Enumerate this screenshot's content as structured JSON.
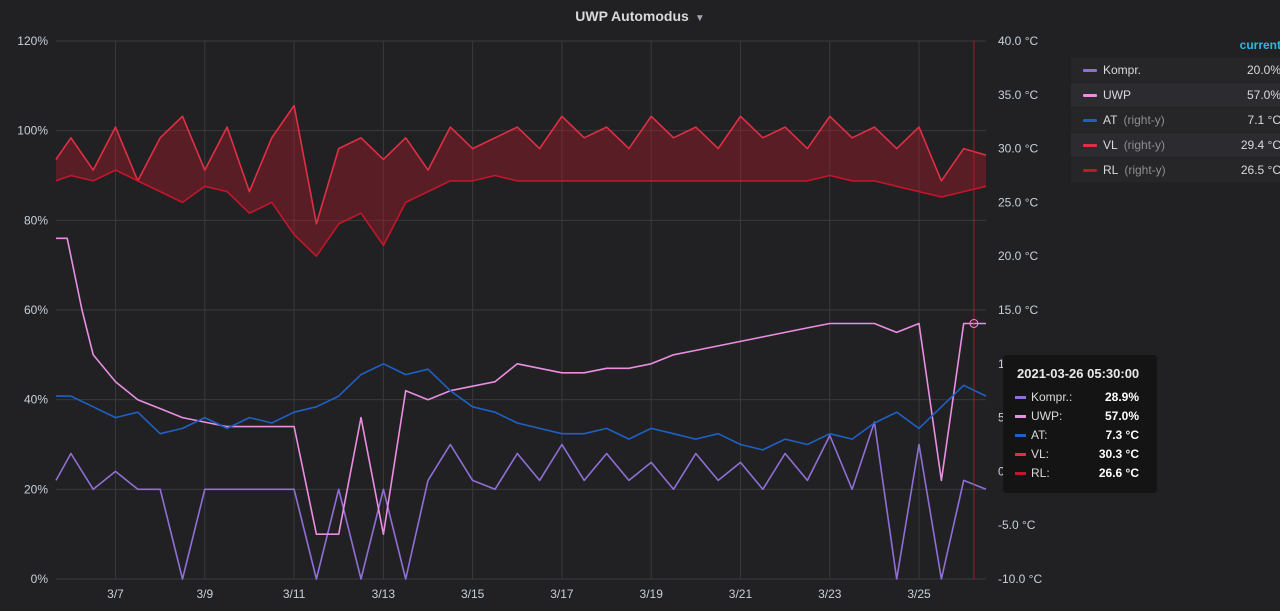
{
  "panel": {
    "title": "UWP Automodus"
  },
  "legend": {
    "header": "current",
    "items": [
      {
        "name": "Kompr.",
        "axis": "",
        "value": "20.0%",
        "color": "#8f6fd6"
      },
      {
        "name": "UWP",
        "axis": "",
        "value": "57.0%",
        "color": "#e98ee0"
      },
      {
        "name": "AT",
        "axis": "(right-y)",
        "value": "7.1 °C",
        "color": "#1f60c4"
      },
      {
        "name": "VL",
        "axis": "(right-y)",
        "value": "29.4 °C",
        "color": "#e02f44"
      },
      {
        "name": "RL",
        "axis": "(right-y)",
        "value": "26.5 °C",
        "color": "#c4162a"
      }
    ]
  },
  "tooltip": {
    "time": "2021-03-26 05:30:00",
    "rows": [
      {
        "name": "Kompr.:",
        "value": "28.9%",
        "color": "#8f6fd6"
      },
      {
        "name": "UWP:",
        "value": "57.0%",
        "color": "#e98ee0"
      },
      {
        "name": "AT:",
        "value": "7.3 °C",
        "color": "#1f60c4"
      },
      {
        "name": "VL:",
        "value": "30.3 °C",
        "color": "#e02f44"
      },
      {
        "name": "RL:",
        "value": "26.6 °C",
        "color": "#c4162a"
      }
    ]
  },
  "chart_data": {
    "type": "line",
    "title": "UWP Automodus",
    "xlabel": "",
    "ylabel": "",
    "y2label": "",
    "x_ticks": [
      "3/7",
      "3/9",
      "3/11",
      "3/13",
      "3/15",
      "3/17",
      "3/19",
      "3/21",
      "3/23",
      "3/25"
    ],
    "x_range": [
      "2021-03-05T16:00",
      "2021-03-26T12:00"
    ],
    "ylim": [
      0,
      120
    ],
    "y_ticks": [
      "0%",
      "20%",
      "40%",
      "60%",
      "80%",
      "100%",
      "120%"
    ],
    "y2lim": [
      -10,
      40
    ],
    "y2_ticks": [
      "-10.0 °C",
      "-5.0 °C",
      "0",
      "5",
      "10",
      "15.0 °C",
      "20.0 °C",
      "25.0 °C",
      "30.0 °C",
      "35.0 °C",
      "40.0 °C"
    ],
    "grid": true,
    "legend_position": "right",
    "series": [
      {
        "name": "Kompr.",
        "axis": "left",
        "color": "#8f6fd6",
        "x": [
          "2021-03-05T16:00",
          "2021-03-06T00:00",
          "2021-03-06T12:00",
          "2021-03-07T00:00",
          "2021-03-07T12:00",
          "2021-03-08T00:00",
          "2021-03-08T12:00",
          "2021-03-09T00:00",
          "2021-03-09T12:00",
          "2021-03-10T00:00",
          "2021-03-10T12:00",
          "2021-03-11T00:00",
          "2021-03-11T12:00",
          "2021-03-12T00:00",
          "2021-03-12T12:00",
          "2021-03-13T00:00",
          "2021-03-13T12:00",
          "2021-03-14T00:00",
          "2021-03-14T12:00",
          "2021-03-15T00:00",
          "2021-03-15T12:00",
          "2021-03-16T00:00",
          "2021-03-16T12:00",
          "2021-03-17T00:00",
          "2021-03-17T12:00",
          "2021-03-18T00:00",
          "2021-03-18T12:00",
          "2021-03-19T00:00",
          "2021-03-19T12:00",
          "2021-03-20T00:00",
          "2021-03-20T12:00",
          "2021-03-21T00:00",
          "2021-03-21T12:00",
          "2021-03-22T00:00",
          "2021-03-22T12:00",
          "2021-03-23T00:00",
          "2021-03-23T12:00",
          "2021-03-24T00:00",
          "2021-03-24T12:00",
          "2021-03-25T00:00",
          "2021-03-25T12:00",
          "2021-03-26T00:00",
          "2021-03-26T12:00"
        ],
        "y": [
          22,
          28,
          20,
          24,
          20,
          20,
          0,
          20,
          20,
          20,
          20,
          20,
          0,
          20,
          0,
          20,
          0,
          22,
          30,
          22,
          20,
          28,
          22,
          30,
          22,
          28,
          22,
          26,
          20,
          28,
          22,
          26,
          20,
          28,
          22,
          32,
          20,
          35,
          0,
          30,
          0,
          22,
          20
        ]
      },
      {
        "name": "UWP",
        "axis": "left",
        "color": "#e98ee0",
        "x": [
          "2021-03-05T16:00",
          "2021-03-05T22:00",
          "2021-03-06T06:00",
          "2021-03-06T12:00",
          "2021-03-07T00:00",
          "2021-03-07T12:00",
          "2021-03-08T00:00",
          "2021-03-08T12:00",
          "2021-03-09T00:00",
          "2021-03-09T12:00",
          "2021-03-10T00:00",
          "2021-03-10T12:00",
          "2021-03-11T00:00",
          "2021-03-11T12:00",
          "2021-03-12T00:00",
          "2021-03-12T12:00",
          "2021-03-13T00:00",
          "2021-03-13T12:00",
          "2021-03-14T00:00",
          "2021-03-14T12:00",
          "2021-03-15T00:00",
          "2021-03-15T12:00",
          "2021-03-16T00:00",
          "2021-03-16T12:00",
          "2021-03-17T00:00",
          "2021-03-17T12:00",
          "2021-03-18T00:00",
          "2021-03-18T12:00",
          "2021-03-19T00:00",
          "2021-03-19T12:00",
          "2021-03-20T00:00",
          "2021-03-20T12:00",
          "2021-03-21T00:00",
          "2021-03-21T12:00",
          "2021-03-22T00:00",
          "2021-03-22T12:00",
          "2021-03-23T00:00",
          "2021-03-23T12:00",
          "2021-03-24T00:00",
          "2021-03-24T12:00",
          "2021-03-25T00:00",
          "2021-03-25T12:00",
          "2021-03-26T00:00",
          "2021-03-26T12:00"
        ],
        "y": [
          76,
          76,
          60,
          50,
          44,
          40,
          38,
          36,
          35,
          34,
          34,
          34,
          34,
          10,
          10,
          36,
          10,
          42,
          40,
          42,
          43,
          44,
          48,
          47,
          46,
          46,
          47,
          47,
          48,
          50,
          51,
          52,
          53,
          54,
          55,
          56,
          57,
          57,
          57,
          55,
          57,
          22,
          57,
          57
        ]
      },
      {
        "name": "AT",
        "axis": "right",
        "color": "#1f60c4",
        "x": [
          "2021-03-05T16:00",
          "2021-03-06T00:00",
          "2021-03-06T12:00",
          "2021-03-07T00:00",
          "2021-03-07T12:00",
          "2021-03-08T00:00",
          "2021-03-08T12:00",
          "2021-03-09T00:00",
          "2021-03-09T12:00",
          "2021-03-10T00:00",
          "2021-03-10T12:00",
          "2021-03-11T00:00",
          "2021-03-11T12:00",
          "2021-03-12T00:00",
          "2021-03-12T12:00",
          "2021-03-13T00:00",
          "2021-03-13T12:00",
          "2021-03-14T00:00",
          "2021-03-14T12:00",
          "2021-03-15T00:00",
          "2021-03-15T12:00",
          "2021-03-16T00:00",
          "2021-03-16T12:00",
          "2021-03-17T00:00",
          "2021-03-17T12:00",
          "2021-03-18T00:00",
          "2021-03-18T12:00",
          "2021-03-19T00:00",
          "2021-03-19T12:00",
          "2021-03-20T00:00",
          "2021-03-20T12:00",
          "2021-03-21T00:00",
          "2021-03-21T12:00",
          "2021-03-22T00:00",
          "2021-03-22T12:00",
          "2021-03-23T00:00",
          "2021-03-23T12:00",
          "2021-03-24T00:00",
          "2021-03-24T12:00",
          "2021-03-25T00:00",
          "2021-03-25T12:00",
          "2021-03-26T00:00",
          "2021-03-26T12:00"
        ],
        "y": [
          7,
          7,
          6,
          5,
          5.5,
          3.5,
          4,
          5,
          4,
          5,
          4.5,
          5.5,
          6,
          7,
          9,
          10,
          9,
          9.5,
          7.5,
          6,
          5.5,
          4.5,
          4,
          3.5,
          3.5,
          4,
          3,
          4,
          3.5,
          3,
          3.5,
          2.5,
          2,
          3,
          2.5,
          3.5,
          3,
          4.5,
          5.5,
          4,
          6,
          8,
          7
        ]
      },
      {
        "name": "VL",
        "axis": "right",
        "color": "#e02f44",
        "x": [
          "2021-03-05T16:00",
          "2021-03-06T00:00",
          "2021-03-06T12:00",
          "2021-03-07T00:00",
          "2021-03-07T12:00",
          "2021-03-08T00:00",
          "2021-03-08T12:00",
          "2021-03-09T00:00",
          "2021-03-09T12:00",
          "2021-03-10T00:00",
          "2021-03-10T12:00",
          "2021-03-11T00:00",
          "2021-03-11T12:00",
          "2021-03-12T00:00",
          "2021-03-12T12:00",
          "2021-03-13T00:00",
          "2021-03-13T12:00",
          "2021-03-14T00:00",
          "2021-03-14T12:00",
          "2021-03-15T00:00",
          "2021-03-15T12:00",
          "2021-03-16T00:00",
          "2021-03-16T12:00",
          "2021-03-17T00:00",
          "2021-03-17T12:00",
          "2021-03-18T00:00",
          "2021-03-18T12:00",
          "2021-03-19T00:00",
          "2021-03-19T12:00",
          "2021-03-20T00:00",
          "2021-03-20T12:00",
          "2021-03-21T00:00",
          "2021-03-21T12:00",
          "2021-03-22T00:00",
          "2021-03-22T12:00",
          "2021-03-23T00:00",
          "2021-03-23T12:00",
          "2021-03-24T00:00",
          "2021-03-24T12:00",
          "2021-03-25T00:00",
          "2021-03-25T12:00",
          "2021-03-26T00:00",
          "2021-03-26T12:00"
        ],
        "y": [
          29,
          31,
          28,
          32,
          27,
          31,
          33,
          28,
          32,
          26,
          31,
          34,
          23,
          30,
          31,
          29,
          31,
          28,
          32,
          30,
          31,
          32,
          30,
          33,
          31,
          32,
          30,
          33,
          31,
          32,
          30,
          33,
          31,
          32,
          30,
          33,
          31,
          32,
          30,
          32,
          27,
          30,
          29.4
        ]
      },
      {
        "name": "RL",
        "axis": "right",
        "color": "#c4162a",
        "x": [
          "2021-03-05T16:00",
          "2021-03-06T00:00",
          "2021-03-06T12:00",
          "2021-03-07T00:00",
          "2021-03-07T12:00",
          "2021-03-08T00:00",
          "2021-03-08T12:00",
          "2021-03-09T00:00",
          "2021-03-09T12:00",
          "2021-03-10T00:00",
          "2021-03-10T12:00",
          "2021-03-11T00:00",
          "2021-03-11T12:00",
          "2021-03-12T00:00",
          "2021-03-12T12:00",
          "2021-03-13T00:00",
          "2021-03-13T12:00",
          "2021-03-14T00:00",
          "2021-03-14T12:00",
          "2021-03-15T00:00",
          "2021-03-15T12:00",
          "2021-03-16T00:00",
          "2021-03-16T12:00",
          "2021-03-17T00:00",
          "2021-03-17T12:00",
          "2021-03-18T00:00",
          "2021-03-18T12:00",
          "2021-03-19T00:00",
          "2021-03-19T12:00",
          "2021-03-20T00:00",
          "2021-03-20T12:00",
          "2021-03-21T00:00",
          "2021-03-21T12:00",
          "2021-03-22T00:00",
          "2021-03-22T12:00",
          "2021-03-23T00:00",
          "2021-03-23T12:00",
          "2021-03-24T00:00",
          "2021-03-24T12:00",
          "2021-03-25T00:00",
          "2021-03-25T12:00",
          "2021-03-26T00:00",
          "2021-03-26T12:00"
        ],
        "y": [
          27,
          27.5,
          27,
          28,
          27,
          26,
          25,
          26.5,
          26,
          24,
          25,
          22,
          20,
          23,
          24,
          21,
          25,
          26,
          27,
          27,
          27.5,
          27,
          27,
          27,
          27,
          27,
          27,
          27,
          27,
          27,
          27,
          27,
          27,
          27,
          27,
          27.5,
          27,
          27,
          26.5,
          26,
          25.5,
          26,
          26.5
        ]
      }
    ]
  }
}
